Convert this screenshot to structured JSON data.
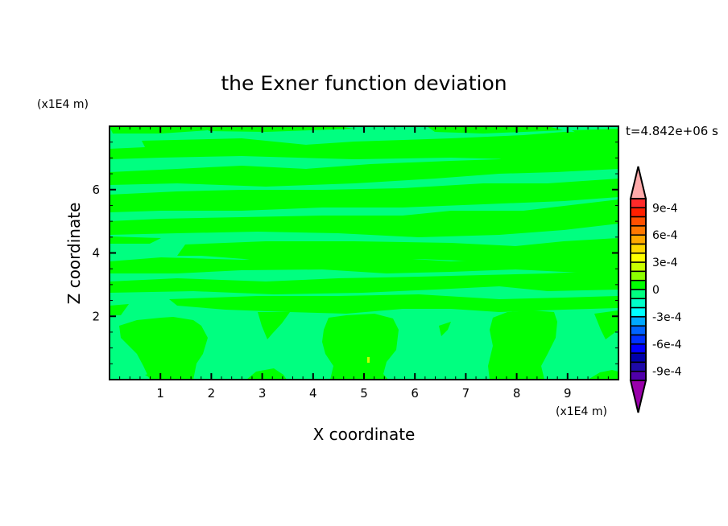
{
  "chart_data": {
    "type": "heatmap",
    "subtype": "filled-contour",
    "title": "the Exner function deviation",
    "xlabel": "X coordinate",
    "ylabel": "Z coordinate",
    "x_unit_label": "(x1E4 m)",
    "y_unit_label": "(x1E4 m)",
    "time_label": "t=4.842e+06 s",
    "xlim": [
      0,
      10
    ],
    "ylim": [
      0,
      8
    ],
    "x_ticks": [
      "1",
      "2",
      "3",
      "4",
      "5",
      "6",
      "7",
      "8",
      "9"
    ],
    "y_ticks": [
      "2",
      "4",
      "6"
    ],
    "grid": false,
    "colorbar": {
      "levels_min": -0.001,
      "levels_max": 0.001,
      "step": 0.0001,
      "tick_labels": [
        "9e-4",
        "6e-4",
        "3e-4",
        "0",
        "-3e-4",
        "-6e-4",
        "-9e-4"
      ],
      "tick_values": [
        0.0009,
        0.0006,
        0.0003,
        0,
        -0.0003,
        -0.0006,
        -0.0009
      ],
      "over_color": "#ffaaaa",
      "under_color": "#9900aa",
      "colors_top_to_bottom": [
        "#ff2a2a",
        "#ff2000",
        "#ff5000",
        "#ff7800",
        "#ffa800",
        "#ffd800",
        "#ffff00",
        "#c8ff00",
        "#8cff00",
        "#00ff00",
        "#00ff80",
        "#00ffc8",
        "#00ffff",
        "#00a8ff",
        "#0064ff",
        "#0032ff",
        "#0000ff",
        "#0000aa",
        "#1e0aa8",
        "#5000aa"
      ]
    },
    "field_summary": {
      "dominant_positive_color": "#00ff00",
      "dominant_negative_color": "#00ff80",
      "positive_range": [
        0,
        0.0001
      ],
      "negative_range": [
        -0.0001,
        0
      ]
    }
  }
}
